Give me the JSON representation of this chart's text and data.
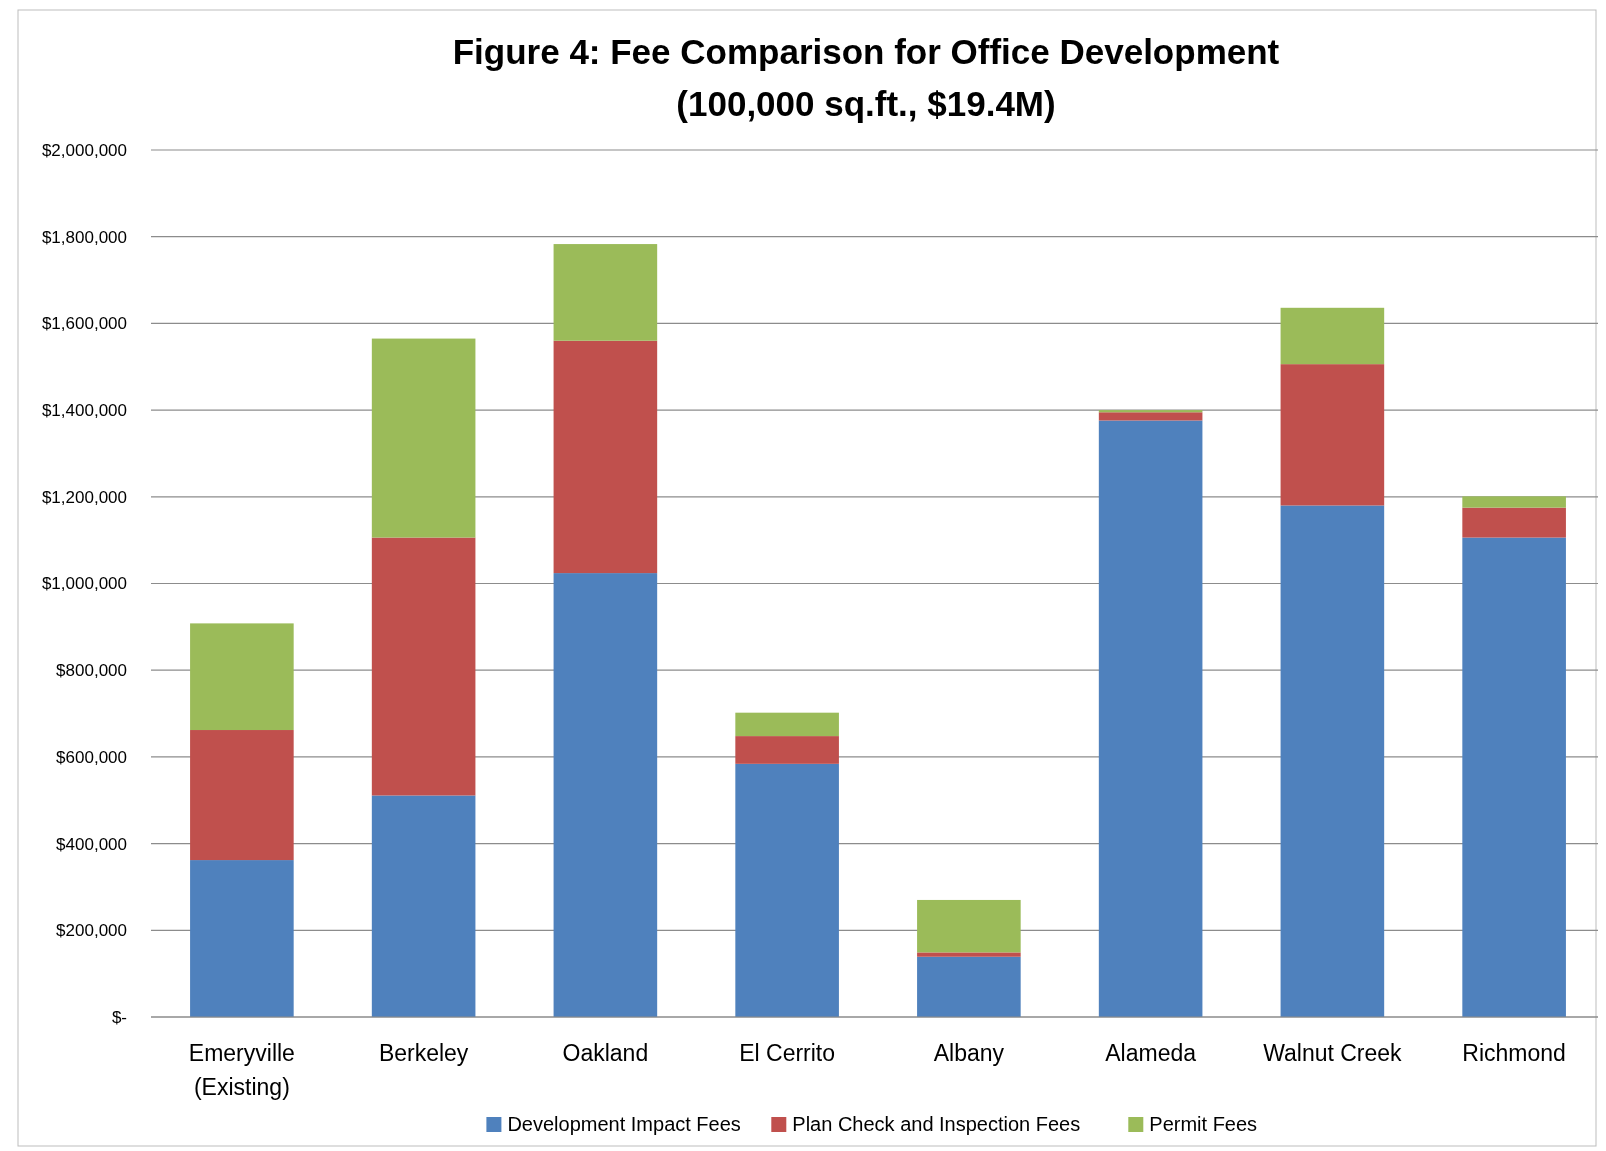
{
  "chart_data": {
    "type": "bar",
    "title": "Figure 4: Fee Comparison for Office Development",
    "subtitle": "(100,000 sq.ft., $19.4M)",
    "categories": [
      "Emeryville (Existing)",
      "Berkeley",
      "Oakland",
      "El Cerrito",
      "Albany",
      "Alameda",
      "Walnut Creek",
      "Richmond"
    ],
    "stacked": true,
    "series": [
      {
        "name": "Development Impact Fees",
        "color": "#4f81bd",
        "values": [
          362000,
          511000,
          1024000,
          584000,
          139000,
          1376000,
          1180000,
          1106000
        ]
      },
      {
        "name": "Plan Check and Inspection Fees",
        "color": "#c0504d",
        "values": [
          300000,
          595000,
          536000,
          64000,
          10000,
          19000,
          326000,
          69000
        ]
      },
      {
        "name": "Permit Fees",
        "color": "#9bbb59",
        "values": [
          246000,
          459000,
          223000,
          54000,
          121000,
          5000,
          130000,
          26000
        ]
      }
    ],
    "ylim": [
      0,
      2000000
    ],
    "yticks": [
      {
        "value": 0,
        "label": "$-"
      },
      {
        "value": 200000,
        "label": "$200,000"
      },
      {
        "value": 400000,
        "label": "$400,000"
      },
      {
        "value": 600000,
        "label": "$600,000"
      },
      {
        "value": 800000,
        "label": "$800,000"
      },
      {
        "value": 1000000,
        "label": "$1,000,000"
      },
      {
        "value": 1200000,
        "label": "$1,200,000"
      },
      {
        "value": 1400000,
        "label": "$1,400,000"
      },
      {
        "value": 1600000,
        "label": "$1,600,000"
      },
      {
        "value": 1800000,
        "label": "$1,800,000"
      },
      {
        "value": 2000000,
        "label": "$2,000,000"
      }
    ],
    "grid": "y",
    "legend": "bottom"
  }
}
